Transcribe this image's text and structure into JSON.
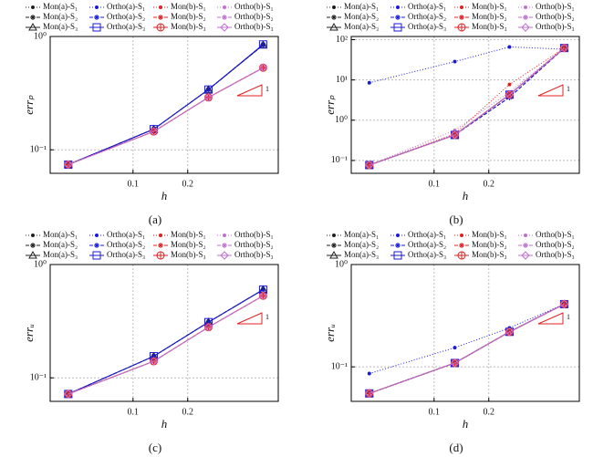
{
  "chart_data": [
    {
      "type": "line",
      "caption": "(a)",
      "x_label": "h",
      "y_label": "errₚ",
      "slope_label": "1",
      "xscale": "log",
      "yscale": "log",
      "grid": true,
      "x": [
        0.044,
        0.13,
        0.26,
        0.52
      ],
      "xlim": [
        0.035,
        0.63
      ],
      "xticks": [
        0.1,
        0.2
      ],
      "ylim": [
        0.062,
        1
      ],
      "yticks": [
        {
          "value": 0.1,
          "label": "10⁻¹"
        },
        {
          "value": 1,
          "label": "10⁰"
        }
      ],
      "series": [
        {
          "name": "Mon(a)-S₁",
          "color": "#222222",
          "dash": "1,2",
          "marker": "dot",
          "values": [
            0.074,
            0.152,
            0.34,
            0.84
          ]
        },
        {
          "name": "Ortho(a)-S₁",
          "color": "#1a1adc",
          "dash": "1,2",
          "marker": "dot",
          "values": [
            0.074,
            0.152,
            0.34,
            0.85
          ]
        },
        {
          "name": "Mon(b)-S₁",
          "color": "#e02020",
          "dash": "1,2",
          "marker": "dot",
          "values": [
            0.074,
            0.145,
            0.29,
            0.53
          ]
        },
        {
          "name": "Ortho(b)-S₁",
          "color": "#c070d0",
          "dash": "1,2",
          "marker": "dot",
          "values": [
            0.074,
            0.145,
            0.29,
            0.53
          ]
        },
        {
          "name": "Mon(a)-S₂",
          "color": "#222222",
          "dash": "4,2",
          "marker": "star",
          "values": [
            0.074,
            0.152,
            0.34,
            0.84
          ]
        },
        {
          "name": "Ortho(a)-S₂",
          "color": "#1a1adc",
          "dash": "4,2",
          "marker": "star",
          "values": [
            0.074,
            0.152,
            0.34,
            0.85
          ]
        },
        {
          "name": "Mon(b)-S₂",
          "color": "#e02020",
          "dash": "4,2",
          "marker": "star",
          "values": [
            0.074,
            0.145,
            0.29,
            0.53
          ]
        },
        {
          "name": "Ortho(b)-S₂",
          "color": "#c070d0",
          "dash": "4,2",
          "marker": "star",
          "values": [
            0.074,
            0.145,
            0.29,
            0.53
          ]
        },
        {
          "name": "Mon(a)-S₃",
          "color": "#222222",
          "dash": "none",
          "marker": "triangle",
          "values": [
            0.074,
            0.152,
            0.34,
            0.84
          ]
        },
        {
          "name": "Ortho(a)-S₃",
          "color": "#1a1adc",
          "dash": "none",
          "marker": "square",
          "values": [
            0.074,
            0.152,
            0.34,
            0.85
          ]
        },
        {
          "name": "Mon(b)-S₃",
          "color": "#e02020",
          "dash": "none",
          "marker": "circle",
          "values": [
            0.074,
            0.145,
            0.29,
            0.53
          ]
        },
        {
          "name": "Ortho(b)-S₃",
          "color": "#c070d0",
          "dash": "none",
          "marker": "diamond",
          "values": [
            0.074,
            0.145,
            0.29,
            0.53
          ]
        }
      ]
    },
    {
      "type": "line",
      "caption": "(b)",
      "x_label": "h",
      "y_label": "errₚ",
      "slope_label": "1",
      "xscale": "log",
      "yscale": "log",
      "grid": true,
      "x": [
        0.044,
        0.13,
        0.26,
        0.52
      ],
      "xlim": [
        0.035,
        0.63
      ],
      "xticks": [
        0.1,
        0.2
      ],
      "ylim": [
        0.048,
        120
      ],
      "yticks": [
        {
          "value": 0.1,
          "label": "10⁻¹"
        },
        {
          "value": 1,
          "label": "10⁰"
        },
        {
          "value": 10,
          "label": "10¹"
        },
        {
          "value": 100,
          "label": "10²"
        }
      ],
      "series": [
        {
          "name": "Mon(a)-S₁",
          "color": "#222222",
          "dash": "1,2",
          "marker": "dot",
          "values": [
            0.077,
            0.43,
            4.3,
            62
          ]
        },
        {
          "name": "Ortho(a)-S₁",
          "color": "#1a1adc",
          "dash": "1,2",
          "marker": "dot",
          "values": [
            8.5,
            28.5,
            66,
            58
          ]
        },
        {
          "name": "Mon(b)-S₁",
          "color": "#e02020",
          "dash": "1,2",
          "marker": "dot",
          "values": [
            0.077,
            0.46,
            7.7,
            62
          ]
        },
        {
          "name": "Ortho(b)-S₁",
          "color": "#c070d0",
          "dash": "1,2",
          "marker": "dot",
          "values": [
            0.077,
            0.56,
            5.0,
            62
          ]
        },
        {
          "name": "Mon(a)-S₂",
          "color": "#222222",
          "dash": "4,2",
          "marker": "star",
          "values": [
            0.077,
            0.43,
            3.7,
            62
          ]
        },
        {
          "name": "Ortho(a)-S₂",
          "color": "#1a1adc",
          "dash": "4,2",
          "marker": "star",
          "values": [
            0.077,
            0.43,
            3.7,
            62
          ]
        },
        {
          "name": "Mon(b)-S₂",
          "color": "#e02020",
          "dash": "4,2",
          "marker": "star",
          "values": [
            0.077,
            0.43,
            4.3,
            62
          ]
        },
        {
          "name": "Ortho(b)-S₂",
          "color": "#c070d0",
          "dash": "4,2",
          "marker": "star",
          "values": [
            0.077,
            0.43,
            4.3,
            62
          ]
        },
        {
          "name": "Mon(a)-S₃",
          "color": "#222222",
          "dash": "none",
          "marker": "triangle",
          "values": [
            0.077,
            0.43,
            4.3,
            62
          ]
        },
        {
          "name": "Ortho(a)-S₃",
          "color": "#1a1adc",
          "dash": "none",
          "marker": "square",
          "values": [
            0.077,
            0.43,
            4.3,
            62
          ]
        },
        {
          "name": "Mon(b)-S₃",
          "color": "#e02020",
          "dash": "none",
          "marker": "circle",
          "values": [
            0.077,
            0.43,
            4.3,
            62
          ]
        },
        {
          "name": "Ortho(b)-S₃",
          "color": "#c070d0",
          "dash": "none",
          "marker": "diamond",
          "values": [
            0.077,
            0.43,
            4.3,
            62
          ]
        }
      ]
    },
    {
      "type": "line",
      "caption": "(c)",
      "x_label": "h",
      "y_label": "errᵤ",
      "slope_label": "1",
      "xscale": "log",
      "yscale": "log",
      "grid": true,
      "x": [
        0.044,
        0.13,
        0.26,
        0.52
      ],
      "xlim": [
        0.035,
        0.63
      ],
      "xticks": [
        0.1,
        0.2
      ],
      "ylim": [
        0.062,
        1
      ],
      "yticks": [
        {
          "value": 0.1,
          "label": "10⁻¹"
        },
        {
          "value": 1,
          "label": "10⁰"
        }
      ],
      "series": [
        {
          "name": "Mon(a)-S₁",
          "color": "#222222",
          "dash": "1,2",
          "marker": "dot",
          "values": [
            0.072,
            0.155,
            0.31,
            0.6
          ]
        },
        {
          "name": "Ortho(a)-S₁",
          "color": "#1a1adc",
          "dash": "1,2",
          "marker": "dot",
          "values": [
            0.072,
            0.155,
            0.31,
            0.6
          ]
        },
        {
          "name": "Mon(b)-S₁",
          "color": "#e02020",
          "dash": "1,2",
          "marker": "dot",
          "values": [
            0.072,
            0.14,
            0.28,
            0.53
          ]
        },
        {
          "name": "Ortho(b)-S₁",
          "color": "#c070d0",
          "dash": "1,2",
          "marker": "dot",
          "values": [
            0.072,
            0.14,
            0.28,
            0.53
          ]
        },
        {
          "name": "Mon(a)-S₂",
          "color": "#222222",
          "dash": "4,2",
          "marker": "star",
          "values": [
            0.072,
            0.155,
            0.31,
            0.6
          ]
        },
        {
          "name": "Ortho(a)-S₂",
          "color": "#1a1adc",
          "dash": "4,2",
          "marker": "star",
          "values": [
            0.072,
            0.155,
            0.31,
            0.6
          ]
        },
        {
          "name": "Mon(b)-S₂",
          "color": "#e02020",
          "dash": "4,2",
          "marker": "star",
          "values": [
            0.072,
            0.14,
            0.28,
            0.53
          ]
        },
        {
          "name": "Ortho(b)-S₂",
          "color": "#c070d0",
          "dash": "4,2",
          "marker": "star",
          "values": [
            0.072,
            0.14,
            0.28,
            0.53
          ]
        },
        {
          "name": "Mon(a)-S₃",
          "color": "#222222",
          "dash": "none",
          "marker": "triangle",
          "values": [
            0.072,
            0.155,
            0.31,
            0.6
          ]
        },
        {
          "name": "Ortho(a)-S₃",
          "color": "#1a1adc",
          "dash": "none",
          "marker": "square",
          "values": [
            0.072,
            0.155,
            0.31,
            0.6
          ]
        },
        {
          "name": "Mon(b)-S₃",
          "color": "#e02020",
          "dash": "none",
          "marker": "circle",
          "values": [
            0.072,
            0.14,
            0.28,
            0.53
          ]
        },
        {
          "name": "Ortho(b)-S₃",
          "color": "#c070d0",
          "dash": "none",
          "marker": "diamond",
          "values": [
            0.072,
            0.14,
            0.28,
            0.53
          ]
        }
      ]
    },
    {
      "type": "line",
      "caption": "(d)",
      "x_label": "h",
      "y_label": "errᵤ",
      "slope_label": "1",
      "xscale": "log",
      "yscale": "log",
      "grid": true,
      "x": [
        0.044,
        0.13,
        0.26,
        0.52
      ],
      "xlim": [
        0.035,
        0.63
      ],
      "xticks": [
        0.1,
        0.2
      ],
      "ylim": [
        0.046,
        1
      ],
      "yticks": [
        {
          "value": 0.1,
          "label": "10⁻¹"
        },
        {
          "value": 1,
          "label": "10⁰"
        }
      ],
      "series": [
        {
          "name": "Mon(a)-S₁",
          "color": "#222222",
          "dash": "1,2",
          "marker": "dot",
          "values": [
            0.055,
            0.109,
            0.22,
            0.41
          ]
        },
        {
          "name": "Ortho(a)-S₁",
          "color": "#1a1adc",
          "dash": "1,2",
          "marker": "dot",
          "values": [
            0.086,
            0.154,
            0.24,
            0.41
          ]
        },
        {
          "name": "Mon(b)-S₁",
          "color": "#e02020",
          "dash": "1,2",
          "marker": "dot",
          "values": [
            0.055,
            0.109,
            0.22,
            0.41
          ]
        },
        {
          "name": "Ortho(b)-S₁",
          "color": "#c070d0",
          "dash": "1,2",
          "marker": "dot",
          "values": [
            0.055,
            0.109,
            0.22,
            0.41
          ]
        },
        {
          "name": "Mon(a)-S₂",
          "color": "#222222",
          "dash": "4,2",
          "marker": "star",
          "values": [
            0.055,
            0.109,
            0.22,
            0.41
          ]
        },
        {
          "name": "Ortho(a)-S₂",
          "color": "#1a1adc",
          "dash": "4,2",
          "marker": "star",
          "values": [
            0.055,
            0.109,
            0.22,
            0.41
          ]
        },
        {
          "name": "Mon(b)-S₂",
          "color": "#e02020",
          "dash": "4,2",
          "marker": "star",
          "values": [
            0.055,
            0.109,
            0.22,
            0.41
          ]
        },
        {
          "name": "Ortho(b)-S₂",
          "color": "#c070d0",
          "dash": "4,2",
          "marker": "star",
          "values": [
            0.055,
            0.109,
            0.22,
            0.41
          ]
        },
        {
          "name": "Mon(a)-S₃",
          "color": "#222222",
          "dash": "none",
          "marker": "triangle",
          "values": [
            0.055,
            0.109,
            0.22,
            0.41
          ]
        },
        {
          "name": "Ortho(a)-S₃",
          "color": "#1a1adc",
          "dash": "none",
          "marker": "square",
          "values": [
            0.055,
            0.109,
            0.22,
            0.41
          ]
        },
        {
          "name": "Mon(b)-S₃",
          "color": "#e02020",
          "dash": "none",
          "marker": "circle",
          "values": [
            0.055,
            0.109,
            0.22,
            0.41
          ]
        },
        {
          "name": "Ortho(b)-S₃",
          "color": "#c070d0",
          "dash": "none",
          "marker": "diamond",
          "values": [
            0.055,
            0.109,
            0.22,
            0.41
          ]
        }
      ]
    }
  ]
}
